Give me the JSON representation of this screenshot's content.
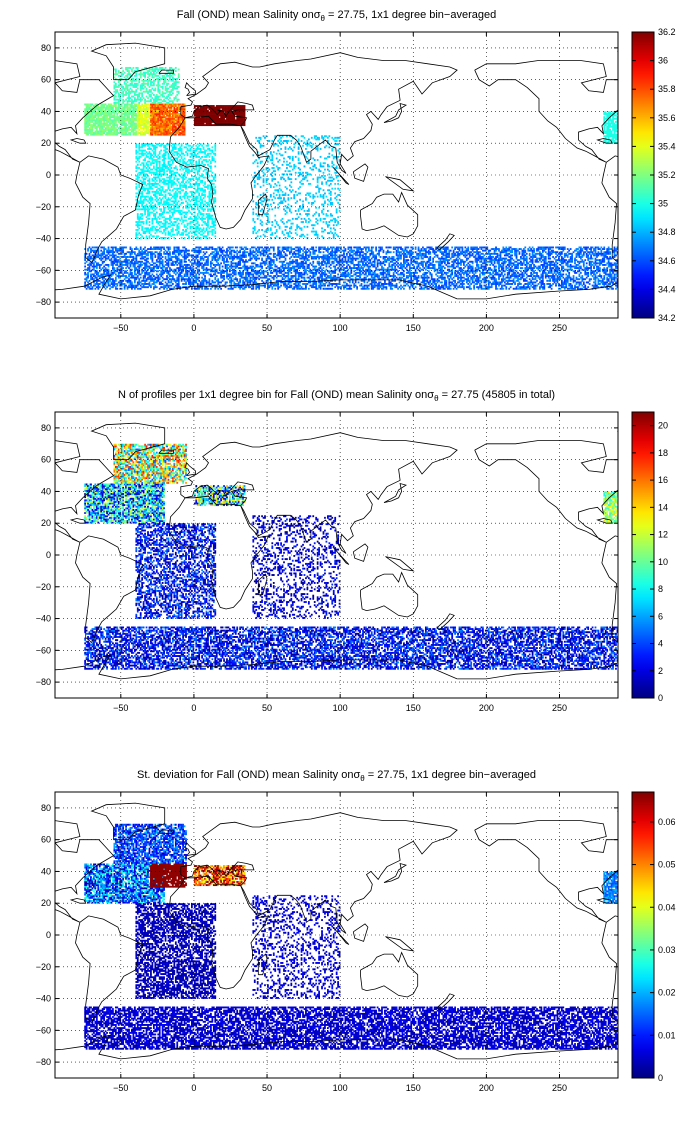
{
  "chart_data": [
    {
      "type": "heatmap",
      "title": {
        "pre": "Fall (OND) mean Salinity on",
        "sym": "σ",
        "sub": "θ",
        "post": " = 27.75, 1x1 degree bin−averaged"
      },
      "xlim": [
        -95,
        290
      ],
      "ylim": [
        -90,
        90
      ],
      "xticks": [
        -50,
        0,
        50,
        100,
        150,
        200,
        250
      ],
      "yticks": [
        80,
        60,
        40,
        20,
        0,
        -20,
        -40,
        -60,
        -80
      ],
      "grid": "dotted",
      "colorbar": {
        "min": 34.2,
        "max": 36.2,
        "ticks": [
          "36.2",
          "36",
          "35.8",
          "35.6",
          "35.4",
          "35.2",
          "35",
          "34.8",
          "34.6",
          "34.4",
          "34.2"
        ],
        "colormap": "jet"
      },
      "data_regions": [
        {
          "region": "Mediterranean",
          "value": 36.2
        },
        {
          "region": "Subtropical North Atlantic (eastern)",
          "value": 35.6
        },
        {
          "region": "Western North Atlantic",
          "value": 35.1
        },
        {
          "region": "Labrador / Nordic Seas",
          "value": 35.0
        },
        {
          "region": "South Atlantic",
          "value": 34.9
        },
        {
          "region": "Indian Ocean",
          "value": 34.8
        },
        {
          "region": "Southern Ocean",
          "value": 34.65
        }
      ]
    },
    {
      "type": "heatmap",
      "title": {
        "pre": "N of profiles per 1x1 degree bin for Fall (OND) mean Salinity on",
        "sym": "σ",
        "sub": "θ",
        "post": " = 27.75 (45805 in total)"
      },
      "xlim": [
        -95,
        290
      ],
      "ylim": [
        -90,
        90
      ],
      "xticks": [
        -50,
        0,
        50,
        100,
        150,
        200,
        250
      ],
      "yticks": [
        80,
        60,
        40,
        20,
        0,
        -20,
        -40,
        -60,
        -80
      ],
      "grid": "dotted",
      "colorbar": {
        "min": 0,
        "max": 21,
        "ticks": [
          "20",
          "18",
          "16",
          "14",
          "12",
          "10",
          "8",
          "6",
          "4",
          "2",
          "0"
        ],
        "colormap": "jet"
      },
      "data_regions": [
        {
          "region": "Subpolar North Atlantic",
          "value": 14
        },
        {
          "region": "Western North Atlantic",
          "value": 8
        },
        {
          "region": "Mediterranean",
          "value": 10
        },
        {
          "region": "South Atlantic",
          "value": 3
        },
        {
          "region": "Indian Ocean",
          "value": 2
        },
        {
          "region": "Southern Ocean",
          "value": 3
        }
      ]
    },
    {
      "type": "heatmap",
      "title": {
        "pre": "St. deviation for Fall (OND) mean Salinity on",
        "sym": "σ",
        "sub": "θ",
        "post": " = 27.75, 1x1 degree bin−averaged"
      },
      "xlim": [
        -95,
        290
      ],
      "ylim": [
        -90,
        90
      ],
      "xticks": [
        -50,
        0,
        50,
        100,
        150,
        200,
        250
      ],
      "yticks": [
        80,
        60,
        40,
        20,
        0,
        -20,
        -40,
        -60,
        -80
      ],
      "grid": "dotted",
      "colorbar": {
        "min": 0,
        "max": 0.067,
        "ticks": [
          "0.06",
          "0.05",
          "0.04",
          "0.03",
          "0.02",
          "0.01",
          "0"
        ],
        "colormap": "jet"
      },
      "data_regions": [
        {
          "region": "Mediterranean outflow",
          "value": 0.066
        },
        {
          "region": "Western North Atlantic",
          "value": 0.02
        },
        {
          "region": "Subpolar North Atlantic",
          "value": 0.012
        },
        {
          "region": "South Atlantic",
          "value": 0.004
        },
        {
          "region": "Indian Ocean",
          "value": 0.006
        },
        {
          "region": "Southern Ocean",
          "value": 0.005
        }
      ]
    }
  ]
}
